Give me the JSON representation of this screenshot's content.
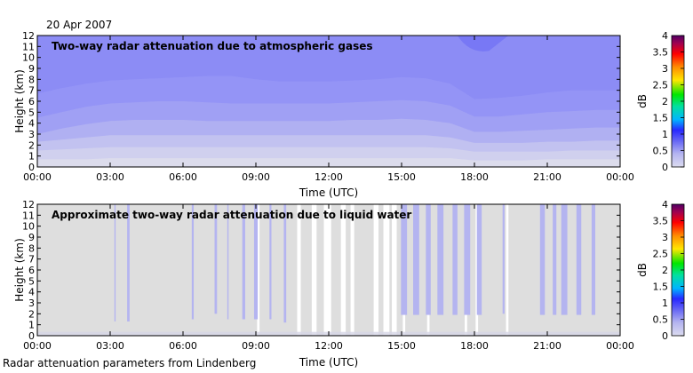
{
  "header": {
    "date": "20 Apr 2007"
  },
  "footer": {
    "source": "Radar attenuation parameters from Lindenberg"
  },
  "colors": {
    "background": "#ffffff",
    "plot_no_data": "#dedede",
    "attenuation_scale": [
      "#dcdcf0",
      "#b4b4f0",
      "#8c8cf5",
      "#6464f5",
      "#2828ff",
      "#00b4ff",
      "#00e600",
      "#ffe600",
      "#ff8c00",
      "#ff0000",
      "#a00050",
      "#500064"
    ]
  },
  "chart_data": [
    {
      "type": "heatmap",
      "title": "Two-way radar attenuation due to atmospheric gases",
      "xlabel": "Time (UTC)",
      "ylabel": "Height (km)",
      "x_ticks": [
        "00:00",
        "03:00",
        "06:00",
        "09:00",
        "12:00",
        "15:00",
        "18:00",
        "21:00",
        "00:00"
      ],
      "xlim_hours": [
        0,
        24
      ],
      "ylim": [
        0,
        12
      ],
      "y_ticks": [
        "0",
        "1",
        "2",
        "3",
        "4",
        "5",
        "6",
        "7",
        "8",
        "9",
        "10",
        "11",
        "12"
      ],
      "colorbar": {
        "label": "dB",
        "range": [
          0,
          4
        ],
        "ticks": [
          "0",
          "0.5",
          "1",
          "1.5",
          "2",
          "2.5",
          "3",
          "3.5",
          "4"
        ]
      },
      "contour_levels_db": [
        0.1,
        0.2,
        0.3,
        0.4,
        0.5,
        0.6
      ],
      "contour_height_km": {
        "time_hours": [
          0,
          1,
          2,
          3,
          4,
          5,
          6,
          7,
          8,
          9,
          10,
          11,
          12,
          13,
          14,
          15,
          16,
          17,
          18,
          19,
          20,
          21,
          22,
          23,
          24
        ],
        "level_0.1": [
          0.7,
          0.7,
          0.7,
          0.8,
          0.8,
          0.8,
          0.8,
          0.8,
          0.8,
          0.8,
          0.8,
          0.8,
          0.8,
          0.8,
          0.8,
          0.8,
          0.8,
          0.8,
          0.6,
          0.6,
          0.6,
          0.7,
          0.7,
          0.7,
          0.7
        ],
        "level_0.2": [
          1.5,
          1.6,
          1.7,
          1.8,
          1.8,
          1.8,
          1.8,
          1.8,
          1.8,
          1.8,
          1.8,
          1.8,
          1.8,
          1.8,
          1.8,
          1.8,
          1.8,
          1.7,
          1.4,
          1.4,
          1.4,
          1.4,
          1.5,
          1.5,
          1.5
        ],
        "level_0.3": [
          2.3,
          2.5,
          2.7,
          2.9,
          2.9,
          2.9,
          2.9,
          2.9,
          2.9,
          2.9,
          2.9,
          2.9,
          2.9,
          2.9,
          2.9,
          2.9,
          2.9,
          2.7,
          2.2,
          2.2,
          2.2,
          2.3,
          2.3,
          2.4,
          2.4
        ],
        "level_0.4": [
          3.0,
          3.5,
          3.9,
          4.2,
          4.3,
          4.3,
          4.3,
          4.2,
          4.2,
          4.2,
          4.2,
          4.2,
          4.2,
          4.3,
          4.3,
          4.4,
          4.3,
          4.0,
          3.2,
          3.2,
          3.3,
          3.4,
          3.5,
          3.6,
          3.6
        ],
        "level_0.5": [
          4.5,
          5.0,
          5.5,
          5.8,
          5.9,
          6.0,
          6.0,
          5.9,
          5.8,
          5.8,
          5.8,
          5.8,
          5.8,
          5.9,
          6.0,
          6.1,
          6.0,
          5.6,
          4.6,
          4.6,
          4.8,
          5.0,
          5.1,
          5.2,
          5.2
        ],
        "level_0.6": [
          6.7,
          7.2,
          7.6,
          7.9,
          8.0,
          8.1,
          8.2,
          8.3,
          8.3,
          8.0,
          7.8,
          7.8,
          7.8,
          7.9,
          8.0,
          8.2,
          8.1,
          7.6,
          6.2,
          6.3,
          6.5,
          6.8,
          7.0,
          7.0,
          7.0
        ]
      }
    },
    {
      "type": "heatmap",
      "title": "Approximate two-way radar attenuation due to liquid water",
      "xlabel": "Time (UTC)",
      "ylabel": "Height (km)",
      "x_ticks": [
        "00:00",
        "03:00",
        "06:00",
        "09:00",
        "12:00",
        "15:00",
        "18:00",
        "21:00",
        "00:00"
      ],
      "xlim_hours": [
        0,
        24
      ],
      "ylim": [
        0,
        12
      ],
      "y_ticks": [
        "0",
        "1",
        "2",
        "3",
        "4",
        "5",
        "6",
        "7",
        "8",
        "9",
        "10",
        "11",
        "12"
      ],
      "colorbar": {
        "label": "dB",
        "range": [
          0,
          4
        ],
        "ticks": [
          "0",
          "0.5",
          "1",
          "1.5",
          "2",
          "2.5",
          "3",
          "3.5",
          "4"
        ]
      },
      "attenuation_streaks": [
        {
          "t": 3.2,
          "w": 0.05,
          "bottom": 1.3,
          "top": 12
        },
        {
          "t": 3.75,
          "w": 0.1,
          "bottom": 1.3,
          "top": 12
        },
        {
          "t": 6.4,
          "w": 0.08,
          "bottom": 1.5,
          "top": 12
        },
        {
          "t": 7.35,
          "w": 0.1,
          "bottom": 2.0,
          "top": 12
        },
        {
          "t": 7.85,
          "w": 0.05,
          "bottom": 1.5,
          "top": 12
        },
        {
          "t": 8.5,
          "w": 0.12,
          "bottom": 1.5,
          "top": 12
        },
        {
          "t": 9.0,
          "w": 0.15,
          "bottom": 1.5,
          "top": 12
        },
        {
          "t": 9.6,
          "w": 0.08,
          "bottom": 1.5,
          "top": 12
        },
        {
          "t": 10.2,
          "w": 0.1,
          "bottom": 1.2,
          "top": 12
        },
        {
          "t": 15.1,
          "w": 0.25,
          "bottom": 1.9,
          "top": 12
        },
        {
          "t": 15.6,
          "w": 0.25,
          "bottom": 1.9,
          "top": 12
        },
        {
          "t": 16.1,
          "w": 0.2,
          "bottom": 1.9,
          "top": 12
        },
        {
          "t": 16.6,
          "w": 0.25,
          "bottom": 1.9,
          "top": 12
        },
        {
          "t": 17.2,
          "w": 0.2,
          "bottom": 1.9,
          "top": 12
        },
        {
          "t": 17.7,
          "w": 0.25,
          "bottom": 1.9,
          "top": 12
        },
        {
          "t": 18.2,
          "w": 0.2,
          "bottom": 1.9,
          "top": 12
        },
        {
          "t": 19.2,
          "w": 0.08,
          "bottom": 2.0,
          "top": 12
        },
        {
          "t": 20.8,
          "w": 0.2,
          "bottom": 1.9,
          "top": 12
        },
        {
          "t": 21.3,
          "w": 0.15,
          "bottom": 1.9,
          "top": 12
        },
        {
          "t": 21.7,
          "w": 0.25,
          "bottom": 1.9,
          "top": 12
        },
        {
          "t": 22.3,
          "w": 0.2,
          "bottom": 1.9,
          "top": 12
        },
        {
          "t": 22.9,
          "w": 0.15,
          "bottom": 1.9,
          "top": 12
        }
      ],
      "no_data_gaps": [
        {
          "t0": 9.05,
          "t1": 9.15
        },
        {
          "t0": 10.7,
          "t1": 10.85
        },
        {
          "t0": 11.3,
          "t1": 11.5
        },
        {
          "t0": 11.8,
          "t1": 12.1
        },
        {
          "t0": 12.5,
          "t1": 12.7
        },
        {
          "t0": 12.9,
          "t1": 13.05
        },
        {
          "t0": 13.85,
          "t1": 14.05
        },
        {
          "t0": 14.25,
          "t1": 14.5
        },
        {
          "t0": 14.6,
          "t1": 14.8
        },
        {
          "t0": 15.05,
          "t1": 15.15
        },
        {
          "t0": 16.05,
          "t1": 16.15
        },
        {
          "t0": 17.6,
          "t1": 17.7
        },
        {
          "t0": 18.05,
          "t1": 18.15
        },
        {
          "t0": 19.3,
          "t1": 19.4
        }
      ]
    }
  ]
}
